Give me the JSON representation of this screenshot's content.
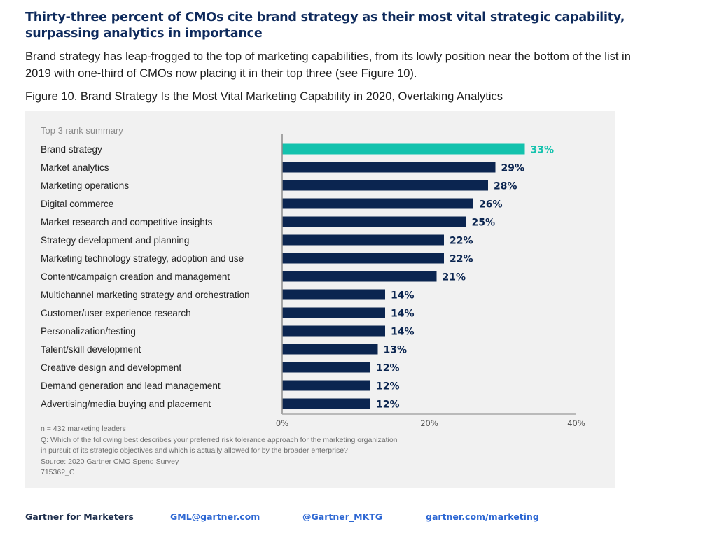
{
  "header": {
    "headline": "Thirty-three percent of CMOs cite brand strategy as their most vital strategic capability, surpassing analytics in importance",
    "intro": "Brand strategy has leap-frogged to the top of marketing capabilities, from its lowly position near the bottom of the list in 2019 with one-third of CMOs now placing it in their top three (see Figure 10).",
    "figure_caption": "Figure 10. Brand Strategy Is the Most Vital Marketing Capability in 2020, Overtaking Analytics"
  },
  "colors": {
    "highlight": "#13c2ad",
    "bar": "#0b2550",
    "value_label": "#0b2550",
    "highlight_label": "#13c2ad",
    "panel": "#f1f1f1"
  },
  "chart_data": {
    "type": "bar",
    "orientation": "horizontal",
    "title": "Top 3 rank summary",
    "categories": [
      "Brand strategy",
      "Market analytics",
      "Marketing operations",
      "Digital commerce",
      "Market research and competitive insights",
      "Strategy development and planning",
      "Marketing technology strategy, adoption and use",
      "Content/campaign creation and management",
      "Multichannel marketing strategy and orchestration",
      "Customer/user experience research",
      "Personalization/testing",
      "Talent/skill development",
      "Creative design and development",
      "Demand generation and lead management",
      "Advertising/media buying and placement"
    ],
    "values": [
      33,
      29,
      28,
      26,
      25,
      22,
      22,
      21,
      14,
      14,
      14,
      13,
      12,
      12,
      12
    ],
    "value_labels": [
      "33%",
      "29%",
      "28%",
      "26%",
      "25%",
      "22%",
      "22%",
      "21%",
      "14%",
      "14%",
      "14%",
      "13%",
      "12%",
      "12%",
      "12%"
    ],
    "highlighted_index": 0,
    "xlabel": "",
    "ylabel": "",
    "xlim": [
      0,
      40
    ],
    "xticks": [
      0,
      20,
      40
    ],
    "xtick_labels": [
      "0%",
      "20%",
      "40%"
    ],
    "grid": false,
    "legend": "none"
  },
  "notes": {
    "n": "n = 432 marketing leaders",
    "question_line1": "Q: Which of the following best describes your preferred risk tolerance approach for the marketing organization",
    "question_line2": "in pursuit of its strategic objectives and which is actually allowed for by the broader enterprise?",
    "source": "Source: 2020 Gartner CMO Spend Survey",
    "id": "715362_C"
  },
  "footer": {
    "brand": "Gartner for Marketers",
    "email": "GML@gartner.com",
    "twitter": "@Gartner_MKTG",
    "website": "gartner.com/marketing"
  }
}
